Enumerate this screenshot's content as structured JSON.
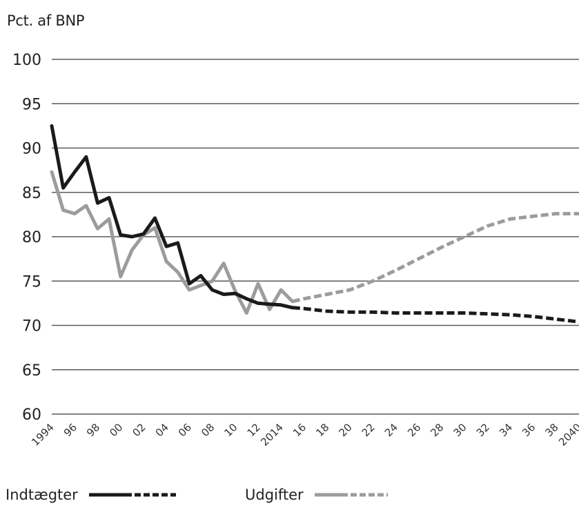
{
  "chart_data": {
    "type": "line",
    "ylabel": "Pct. af BNP",
    "xlabel": "",
    "ylim": [
      60,
      100
    ],
    "yticks": [
      60,
      65,
      70,
      75,
      80,
      85,
      90,
      95,
      100
    ],
    "x_tick_labels": [
      "1994",
      "96",
      "98",
      "00",
      "02",
      "04",
      "06",
      "08",
      "10",
      "12",
      "2014",
      "16",
      "18",
      "20",
      "22",
      "24",
      "26",
      "28",
      "30",
      "32",
      "34",
      "36",
      "38",
      "2040"
    ],
    "x_years": [
      1994,
      1996,
      1998,
      2000,
      2002,
      2004,
      2006,
      2008,
      2010,
      2012,
      2014,
      2016,
      2018,
      2020,
      2022,
      2024,
      2026,
      2028,
      2030,
      2032,
      2034,
      2036,
      2038,
      2040
    ],
    "grid": true,
    "legend_position": "bottom-left",
    "series": [
      {
        "name": "Indtægter",
        "color": "#1a1a1a",
        "historical": {
          "x": [
            1994,
            1995,
            1996,
            1997,
            1998,
            1999,
            2000,
            2001,
            2002,
            2003,
            2004,
            2005,
            2006,
            2007,
            2008,
            2009,
            2010,
            2011,
            2012,
            2013,
            2014,
            2015
          ],
          "y": [
            92.5,
            85.5,
            87.3,
            89.0,
            83.8,
            84.4,
            80.2,
            80.0,
            80.3,
            82.1,
            78.9,
            79.3,
            74.7,
            75.6,
            74.0,
            73.5,
            73.6,
            73.0,
            72.5,
            72.4,
            72.3,
            72.0
          ]
        },
        "projection": {
          "x": [
            2015,
            2016,
            2018,
            2020,
            2022,
            2024,
            2026,
            2028,
            2030,
            2032,
            2034,
            2036,
            2038,
            2040
          ],
          "y": [
            72.0,
            71.9,
            71.6,
            71.5,
            71.5,
            71.4,
            71.4,
            71.4,
            71.4,
            71.3,
            71.2,
            71.0,
            70.7,
            70.4
          ]
        }
      },
      {
        "name": "Udgifter",
        "color": "#9c9c9c",
        "historical": {
          "x": [
            1994,
            1995,
            1996,
            1997,
            1998,
            1999,
            2000,
            2001,
            2002,
            2003,
            2004,
            2005,
            2006,
            2007,
            2008,
            2009,
            2010,
            2011,
            2012,
            2013,
            2014,
            2015
          ],
          "y": [
            87.3,
            83.0,
            82.6,
            83.5,
            80.9,
            82.0,
            75.5,
            78.5,
            80.2,
            81.0,
            77.2,
            76.0,
            74.0,
            74.5,
            75.0,
            77.0,
            73.9,
            71.4,
            74.7,
            71.8,
            74.0,
            72.7
          ]
        },
        "projection": {
          "x": [
            2015,
            2016,
            2018,
            2020,
            2022,
            2024,
            2026,
            2028,
            2030,
            2032,
            2034,
            2036,
            2038,
            2040
          ],
          "y": [
            72.7,
            73.0,
            73.5,
            74.0,
            75.0,
            76.2,
            77.5,
            78.8,
            80.0,
            81.2,
            82.0,
            82.3,
            82.6,
            82.6
          ]
        }
      }
    ]
  }
}
